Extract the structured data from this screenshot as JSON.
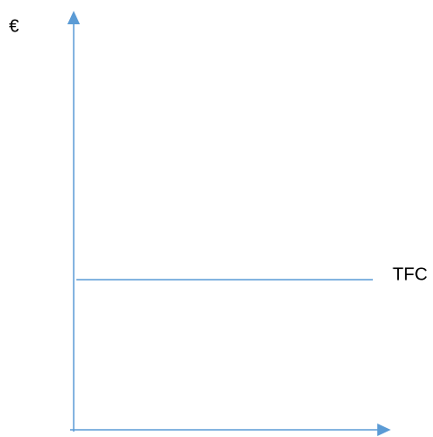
{
  "axes": {
    "y_label": "€"
  },
  "lines": [
    {
      "label": "TFC"
    }
  ]
}
